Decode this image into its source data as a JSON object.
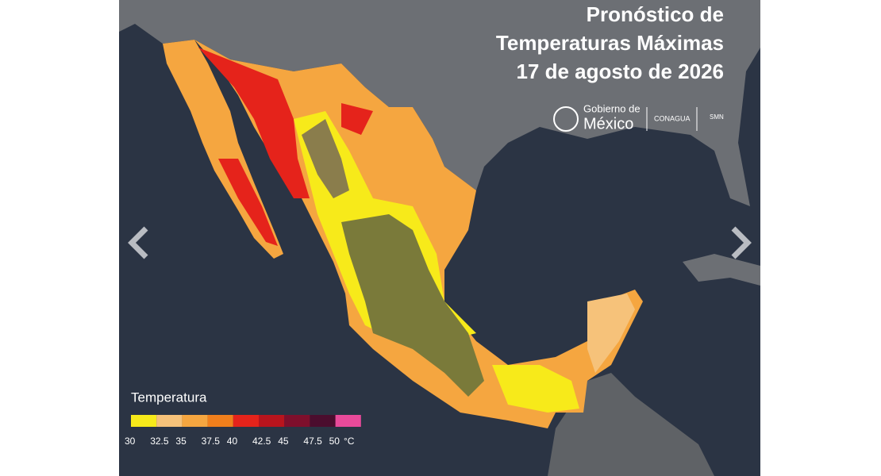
{
  "header": {
    "title_lines": [
      "Pronóstico de",
      "Temperaturas Máximas",
      "17 de agosto de 2026"
    ]
  },
  "logos": {
    "gobierno": "Gobierno de",
    "mexico": "México",
    "conagua": "CONAGUA",
    "smn": "SMN"
  },
  "legend": {
    "title": "Temperatura",
    "ticks": [
      30,
      32.5,
      35,
      37.5,
      40,
      42.5,
      45,
      47.5,
      50
    ],
    "unit": "°C",
    "colors": [
      "#f7ea1a",
      "#f6c27a",
      "#f5a640",
      "#f07f1c",
      "#e5231b",
      "#b8141d",
      "#7e0f2c",
      "#4b0d2e",
      "#e94a9a"
    ]
  }
}
